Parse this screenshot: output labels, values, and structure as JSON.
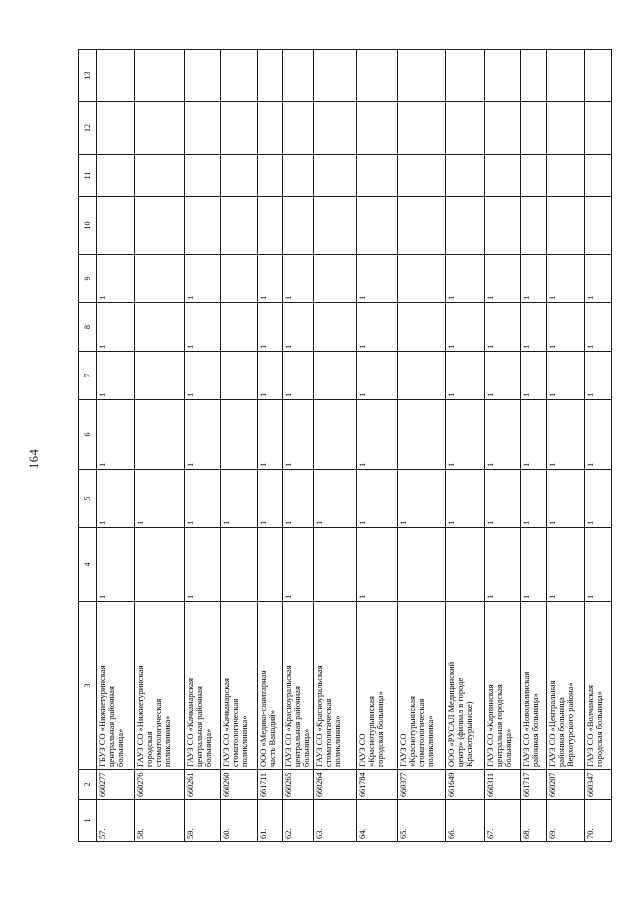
{
  "page": {
    "number": "164"
  },
  "table": {
    "headers": [
      "1",
      "2",
      "3",
      "4",
      "5",
      "6",
      "7",
      "8",
      "9",
      "10",
      "11",
      "12",
      "13"
    ],
    "rows": [
      {
        "num": "57.",
        "code": "660277",
        "name": "ГБУЗ СО «Нижнетуринская\nцентральная районная\nбольница»",
        "values": [
          "1",
          "1",
          "1",
          "1",
          "1",
          "1",
          "",
          "",
          "",
          ""
        ]
      },
      {
        "num": "58.",
        "code": "660276",
        "name": "ГАУЗ СО «Нижнетуринская\nгородская\nстоматологическая\nполиклиника»",
        "values": [
          "",
          "1",
          "",
          "",
          "",
          "",
          "",
          "",
          "",
          ""
        ]
      },
      {
        "num": "59.",
        "code": "660261",
        "name": "ГАУЗ СО «Качканарская\nцентральная районная\nбольница»",
        "values": [
          "1",
          "1",
          "1",
          "1",
          "1",
          "1",
          "",
          "",
          "",
          ""
        ]
      },
      {
        "num": "60.",
        "code": "660260",
        "name": "ГАУЗ СО «Качканарская\nстоматологическая\nполиклиника»",
        "values": [
          "",
          "1",
          "",
          "",
          "",
          "",
          "",
          "",
          "",
          ""
        ]
      },
      {
        "num": "61.",
        "code": "661711",
        "name": "ООО «Медико-санитарная\nчасть Ванадий»",
        "values": [
          "",
          "1",
          "1",
          "1",
          "1",
          "1",
          "",
          "",
          "",
          ""
        ]
      },
      {
        "num": "62.",
        "code": "660265",
        "name": "ГАУЗ СО «Красноуральская\nцентральная районная\nбольница»",
        "values": [
          "1",
          "1",
          "1",
          "1",
          "1",
          "1",
          "",
          "",
          "",
          ""
        ]
      },
      {
        "num": "63.",
        "code": "660264",
        "name": "ГАУЗ СО «Красноуральская\nстоматологическая\nполиклиника»",
        "values": [
          "",
          "1",
          "",
          "",
          "",
          "",
          "",
          "",
          "",
          ""
        ]
      },
      {
        "num": "64.",
        "code": "661784",
        "name": "ГАУЗ СО\n«Краснотурьинская\nгородская больница»",
        "values": [
          "1",
          "1",
          "1",
          "1",
          "1",
          "1",
          "",
          "",
          "",
          ""
        ]
      },
      {
        "num": "65.",
        "code": "660377",
        "name": "ГАУЗ СО\n«Краснотурьинская\nстоматологическая\nполиклиника»",
        "values": [
          "",
          "1",
          "",
          "",
          "",
          "",
          "",
          "",
          "",
          ""
        ]
      },
      {
        "num": "66.",
        "code": "661649",
        "name": "ООО «РУСАЛ Медицинский\nцентр» (филиал в городе\nКраснотурьинске)",
        "values": [
          "",
          "1",
          "1",
          "1",
          "1",
          "1",
          "",
          "",
          "",
          ""
        ]
      },
      {
        "num": "67.",
        "code": "660311",
        "name": "ГАУЗ СО «Карпинская\nцентральная городская\nбольница»",
        "values": [
          "1",
          "1",
          "1",
          "1",
          "1",
          "1",
          "",
          "",
          "",
          ""
        ]
      },
      {
        "num": "68.",
        "code": "661717",
        "name": "ГАУЗ СО «Новолялинская\nрайонная больница»",
        "values": [
          "1",
          "1",
          "1",
          "1",
          "1",
          "1",
          "",
          "",
          "",
          ""
        ]
      },
      {
        "num": "69.",
        "code": "660207",
        "name": "ГАУЗ СО «Центральная\nрайонная больница\nВерхотурского района»",
        "values": [
          "1",
          "1",
          "1",
          "1",
          "1",
          "1",
          "",
          "",
          "",
          ""
        ]
      },
      {
        "num": "70.",
        "code": "660347",
        "name": "ГАУЗ СО «Волчанская\nгородская больница»",
        "values": [
          "1",
          "1",
          "1",
          "1",
          "1",
          "1",
          "",
          "",
          "",
          ""
        ]
      }
    ]
  }
}
